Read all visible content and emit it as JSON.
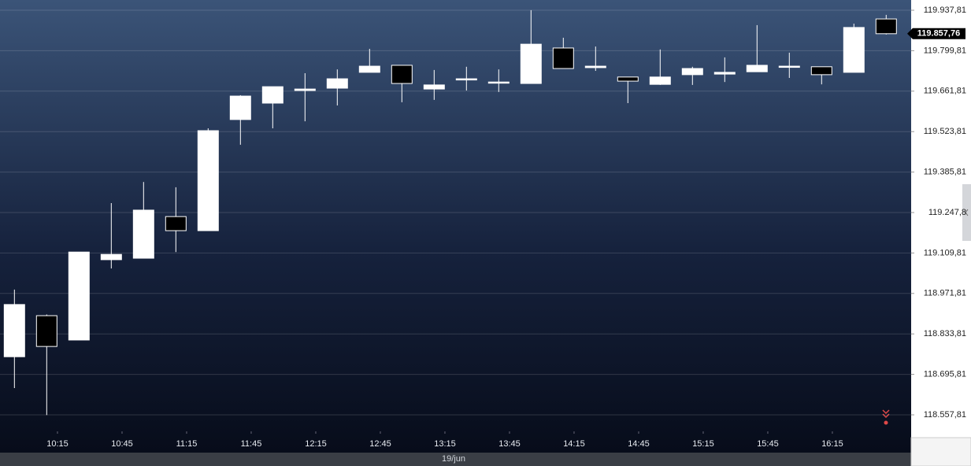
{
  "chart_data": {
    "type": "candlestick",
    "x": [
      595,
      610,
      625,
      640,
      655,
      670,
      685,
      700,
      715,
      730,
      745,
      760,
      775,
      790,
      805,
      820,
      835,
      850,
      865,
      880,
      895,
      910,
      925,
      940,
      955,
      970,
      985,
      1000
    ],
    "open": [
      118756,
      118896,
      118813,
      119087,
      119092,
      119234,
      119186,
      119565,
      119621,
      119664,
      119672,
      119726,
      119750,
      119669,
      119702,
      119691,
      119688,
      119809,
      119742,
      119710,
      119685,
      119718,
      119720,
      119728,
      119745,
      119745,
      119726,
      119908
    ],
    "high": [
      118985,
      118900,
      119113,
      119280,
      119352,
      119334,
      119535,
      119648,
      119677,
      119723,
      119736,
      119806,
      119750,
      119734,
      119745,
      119736,
      119938,
      119844,
      119814,
      119710,
      119804,
      119745,
      119777,
      119887,
      119793,
      119745,
      119892,
      119922
    ],
    "low": [
      118649,
      118557,
      118813,
      119057,
      119092,
      119113,
      119186,
      119479,
      119535,
      119559,
      119613,
      119726,
      119624,
      119632,
      119664,
      119659,
      119688,
      119739,
      119731,
      119621,
      119683,
      119683,
      119693,
      119728,
      119707,
      119685,
      119726,
      119855
    ],
    "close": [
      118934,
      118791,
      119113,
      119105,
      119256,
      119186,
      119527,
      119645,
      119677,
      119669,
      119704,
      119747,
      119688,
      119683,
      119704,
      119693,
      119822,
      119739,
      119747,
      119696,
      119710,
      119739,
      119726,
      119750,
      119747,
      119718,
      119879,
      119857.76
    ],
    "up_color": "#ffffff",
    "down_color": "#000000",
    "xlim": [
      588.3,
      1011.6
    ],
    "xticks": [
      {
        "value": 615,
        "label": "10:15"
      },
      {
        "value": 645,
        "label": "10:45"
      },
      {
        "value": 675,
        "label": "11:15"
      },
      {
        "value": 705,
        "label": "11:45"
      },
      {
        "value": 735,
        "label": "12:15"
      },
      {
        "value": 765,
        "label": "12:45"
      },
      {
        "value": 795,
        "label": "13:15"
      },
      {
        "value": 825,
        "label": "13:45"
      },
      {
        "value": 855,
        "label": "14:15"
      },
      {
        "value": 885,
        "label": "14:45"
      },
      {
        "value": 915,
        "label": "15:15"
      },
      {
        "value": 945,
        "label": "15:45"
      },
      {
        "value": 975,
        "label": "16:15"
      }
    ],
    "ylim": [
      118501.4,
      119972.7
    ],
    "yticks": [
      {
        "value": 119937.81,
        "label": "119.937,81"
      },
      {
        "value": 119799.81,
        "label": "119.799,81"
      },
      {
        "value": 119661.81,
        "label": "119.661,81"
      },
      {
        "value": 119523.81,
        "label": "119.523,81"
      },
      {
        "value": 119385.81,
        "label": "119.385,81"
      },
      {
        "value": 119247.81,
        "label": "119.247,8"
      },
      {
        "value": 119109.81,
        "label": "119.109,81"
      },
      {
        "value": 118971.81,
        "label": "118.971,81"
      },
      {
        "value": 118833.81,
        "label": "118.833,81"
      },
      {
        "value": 118695.81,
        "label": "118.695,81"
      },
      {
        "value": 118557.81,
        "label": "118.557,81"
      }
    ],
    "grid": true,
    "last_price": 119857.76,
    "last_price_label": "119.857,76",
    "date_label": "19/jun"
  }
}
